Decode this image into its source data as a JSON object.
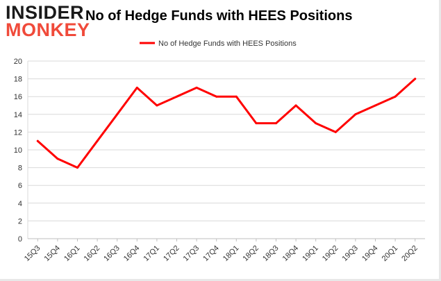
{
  "brand": {
    "logo_top": "INSIDER",
    "logo_bottom": "MONKEY",
    "accent_color": "#f04a3a"
  },
  "chart_data": {
    "type": "line",
    "title": "No of Hedge Funds with HEES Positions",
    "xlabel": "",
    "ylabel": "",
    "categories": [
      "15Q3",
      "15Q4",
      "16Q1",
      "16Q2",
      "16Q3",
      "16Q4",
      "17Q1",
      "17Q2",
      "17Q3",
      "17Q4",
      "18Q1",
      "18Q2",
      "18Q3",
      "18Q4",
      "19Q1",
      "19Q2",
      "19Q3",
      "19Q4",
      "20Q1",
      "20Q2"
    ],
    "series": [
      {
        "name": "No of Hedge Funds with HEES Positions",
        "color": "#ff0000",
        "values": [
          11,
          9,
          8,
          11,
          14,
          17,
          15,
          16,
          17,
          16,
          16,
          13,
          13,
          15,
          13,
          12,
          14,
          15,
          16,
          18
        ]
      }
    ],
    "ylim": [
      0,
      20
    ],
    "yticks": [
      0,
      2,
      4,
      6,
      8,
      10,
      12,
      14,
      16,
      18,
      20
    ],
    "grid": "horizontal",
    "legend_position": "top-center"
  }
}
